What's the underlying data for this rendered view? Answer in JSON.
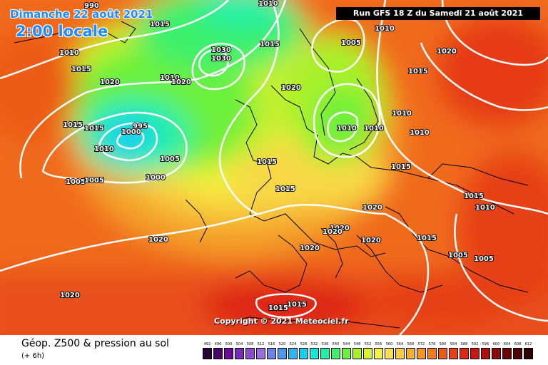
{
  "header": {
    "date": "Dimanche 22 août 2021",
    "local_time": "2:00 locale",
    "run": "Run GFS 18 Z du Samedi 21 août 2021"
  },
  "copyright": "Copyright © 2021 Meteociel.fr",
  "footer": {
    "title": "Géop. Z500 & pression au sol",
    "subtitle": "(+ 6h)"
  },
  "legend": {
    "values": [
      "492",
      "496",
      "500",
      "504",
      "508",
      "512",
      "516",
      "520",
      "524",
      "528",
      "532",
      "536",
      "540",
      "544",
      "548",
      "552",
      "556",
      "560",
      "564",
      "568",
      "572",
      "576",
      "580",
      "584",
      "588",
      "592",
      "596",
      "600",
      "604",
      "608",
      "612"
    ],
    "colors": [
      "#2a0038",
      "#4b006e",
      "#6a0a96",
      "#7a2ab8",
      "#8c4ad0",
      "#9a6ee0",
      "#6c82e8",
      "#4a9af0",
      "#2eb4f4",
      "#1ccff0",
      "#19e6d8",
      "#22f0a8",
      "#3cf06c",
      "#6cf03a",
      "#a8f02a",
      "#d8f02e",
      "#f4f040",
      "#f8e050",
      "#f8cc40",
      "#f4b030",
      "#f49424",
      "#f07a1c",
      "#ec5c18",
      "#e64014",
      "#de2812",
      "#c81810",
      "#aa0e0e",
      "#8c0808",
      "#6e0404",
      "#500202",
      "#300000"
    ]
  },
  "isobar_labels": [
    "990",
    "1010",
    "1015",
    "1010",
    "1015",
    "1020",
    "1030",
    "1030",
    "1010",
    "1015",
    "1020",
    "1010",
    "1005",
    "1015",
    "1020",
    "1020",
    "1015",
    "1010",
    "1010",
    "1015",
    "995",
    "1000",
    "1010",
    "1005",
    "1000",
    "1005",
    "1005",
    "1015",
    "1015",
    "1010",
    "1010",
    "1015",
    "1015",
    "1010",
    "1020",
    "1020",
    "1020",
    "1020",
    "1020",
    "1015",
    "1005",
    "1005",
    "1020",
    "1020",
    "1015",
    "1015"
  ]
}
